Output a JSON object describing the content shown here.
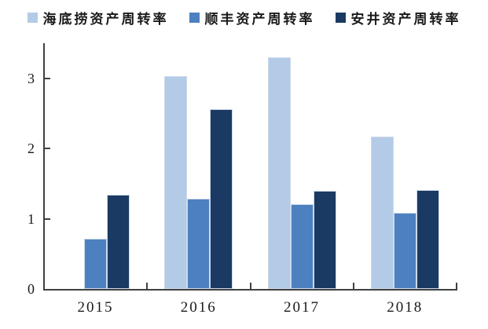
{
  "chart_data": {
    "type": "bar",
    "title": "",
    "categories": [
      "2015",
      "2016",
      "2017",
      "2018"
    ],
    "series": [
      {
        "name": "海底捞资产周转率",
        "color": "#b3cbe6",
        "values": [
          null,
          3.03,
          3.3,
          2.17
        ]
      },
      {
        "name": "顺丰资产周转率",
        "color": "#4d80bf",
        "values": [
          0.72,
          1.29,
          1.21,
          1.08
        ]
      },
      {
        "name": "安井资产周转率",
        "color": "#1b3a63",
        "values": [
          1.34,
          2.56,
          1.4,
          1.41
        ]
      }
    ],
    "xlabel": "",
    "ylabel": "",
    "ylim": [
      0,
      3.5
    ],
    "yticks": [
      0,
      1,
      2,
      3
    ],
    "grid": false,
    "legend_position": "top",
    "axis_color": "#404040",
    "bar_border_color": "#ccd9ec",
    "background_color": "#ffffff"
  }
}
